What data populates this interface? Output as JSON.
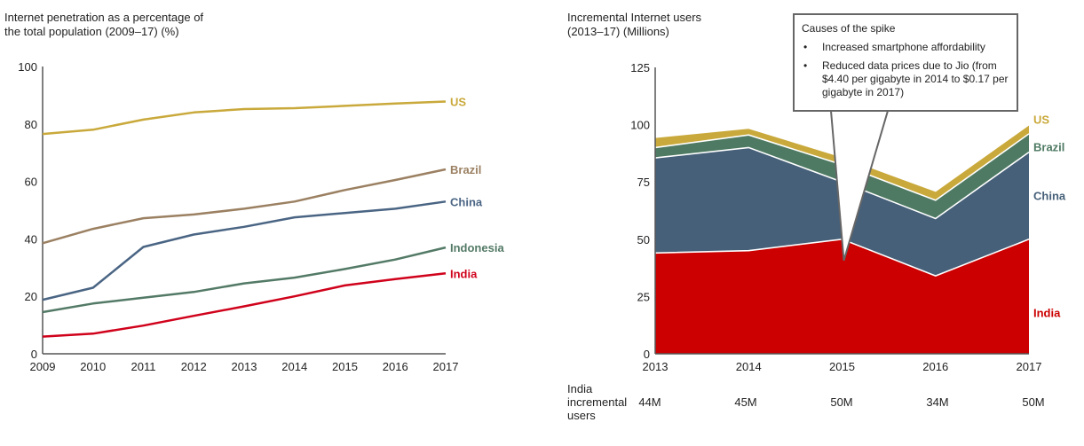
{
  "chart_data": [
    {
      "type": "line",
      "title": "Internet penetration as a percentage of\nthe total population (2009–17) (%)",
      "xlabel": "",
      "ylabel": "%",
      "x": [
        "2009",
        "2010",
        "2011",
        "2012",
        "2013",
        "2014",
        "2015",
        "2016",
        "2017"
      ],
      "ylim": [
        0,
        100
      ],
      "yticks": [
        "0",
        "20",
        "40",
        "60",
        "80",
        "100"
      ],
      "grid": false,
      "legend": "inline-right",
      "series": [
        {
          "name": "US",
          "color": "#c9a93b",
          "values": [
            76.5,
            78,
            81.5,
            84,
            85.2,
            85.5,
            86.3,
            87.1,
            87.8
          ]
        },
        {
          "name": "Brazil",
          "color": "#9b8062",
          "values": [
            38.5,
            43.5,
            47.2,
            48.5,
            50.5,
            53,
            57,
            60.5,
            64.2
          ]
        },
        {
          "name": "China",
          "color": "#4a6584",
          "values": [
            18.8,
            23,
            37.2,
            41.5,
            44.2,
            47.5,
            49,
            50.5,
            53
          ]
        },
        {
          "name": "Indonesia",
          "color": "#537a66",
          "values": [
            14.5,
            17.5,
            19.5,
            21.5,
            24.5,
            26.5,
            29.5,
            32.8,
            37
          ]
        },
        {
          "name": "India",
          "color": "#d0021b",
          "values": [
            6,
            7,
            9.8,
            13.2,
            16.5,
            20,
            23.8,
            26,
            28
          ]
        }
      ]
    },
    {
      "type": "area",
      "stacked": true,
      "title": "Incremental Internet users\n(2013–17) (Millions)",
      "xlabel": "",
      "ylabel": "Millions",
      "x": [
        "2013",
        "2014",
        "2015",
        "2016",
        "2017"
      ],
      "ylim": [
        0,
        125
      ],
      "yticks": [
        "0",
        "25",
        "50",
        "75",
        "100",
        "125"
      ],
      "grid": false,
      "legend": "inline-right",
      "series": [
        {
          "name": "India",
          "color": "#cc0000",
          "values": [
            44,
            45,
            50,
            34,
            50
          ]
        },
        {
          "name": "China",
          "color": "#466079",
          "values": [
            41.5,
            45,
            25,
            25,
            38
          ]
        },
        {
          "name": "Brazil",
          "color": "#4e7a63",
          "values": [
            4.5,
            5.5,
            7.5,
            8,
            8
          ]
        },
        {
          "name": "US",
          "color": "#c9a93b",
          "values": [
            4.5,
            3,
            3.5,
            4,
            4
          ]
        }
      ],
      "annotation": {
        "heading": "Causes of the spike",
        "bullets": [
          "Increased smartphone affordability",
          "Reduced data prices due to Jio (from $4.40 per gigabyte in 2014 to $0.17 per gigabyte in 2017)"
        ],
        "points_to": "2015"
      },
      "table": {
        "label": "India\nincremental\nusers",
        "values": [
          "44M",
          "45M",
          "50M",
          "34M",
          "50M"
        ]
      }
    }
  ],
  "bullet_glyph": "•"
}
